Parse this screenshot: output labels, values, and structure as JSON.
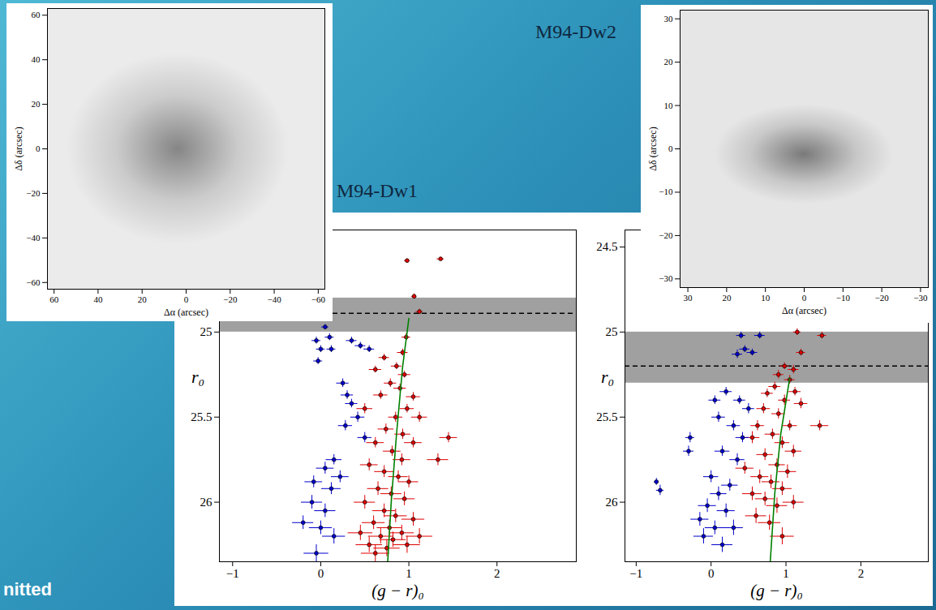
{
  "chart_data": [
    {
      "type": "scatter",
      "xlabel": "(g − r)₀",
      "ylabel": "r₀",
      "xlim": [
        -1.15,
        2.9
      ],
      "ylim": [
        26.35,
        24.4
      ],
      "xticks": [
        {
          "value": -1,
          "label": "−1"
        },
        0,
        1,
        2
      ],
      "yticks": [
        25,
        25.5,
        26
      ],
      "hline": {
        "value": 24.89,
        "band": [
          24.8,
          25.0
        ],
        "line_style": "dashed",
        "color": "#000000",
        "band_color": "#a0a0a0"
      },
      "series": [
        {
          "type": "scatter",
          "marker": "o",
          "color": "#e00000",
          "x": [
            0.98,
            1.36,
            1.06,
            1.12,
            0.97,
            0.93,
            0.72,
            0.86,
            0.95,
            0.62,
            0.79,
            0.9,
            1.05,
            0.68,
            0.98,
            1.12,
            0.85,
            0.5,
            0.74,
            0.93,
            1.05,
            0.62,
            0.81,
            1.45,
            0.92,
            1.33,
            0.55,
            0.72,
            0.88,
            1.0,
            0.65,
            0.8,
            0.95,
            0.5,
            0.72,
            0.85,
            1.05,
            0.6,
            0.78,
            0.92,
            0.45,
            0.68,
            0.82,
            1.12,
            0.55,
            0.75,
            0.98,
            0.62
          ],
          "y": [
            24.58,
            24.57,
            24.79,
            24.88,
            25.03,
            25.12,
            25.15,
            25.2,
            25.25,
            25.22,
            25.3,
            25.33,
            25.38,
            25.37,
            25.45,
            25.5,
            25.5,
            25.45,
            25.57,
            25.6,
            25.65,
            25.65,
            25.7,
            25.62,
            25.75,
            25.75,
            25.78,
            25.82,
            25.85,
            25.88,
            25.92,
            25.95,
            25.98,
            26.0,
            26.05,
            26.08,
            26.1,
            26.12,
            26.15,
            26.18,
            26.18,
            26.2,
            26.22,
            26.2,
            26.25,
            26.27,
            26.25,
            26.3
          ],
          "xerr": [
            0.03,
            0.04,
            0.03,
            0.04,
            0.05,
            0.06,
            0.06,
            0.06,
            0.07,
            0.07,
            0.07,
            0.07,
            0.08,
            0.08,
            0.08,
            0.09,
            0.08,
            0.09,
            0.09,
            0.09,
            0.1,
            0.1,
            0.1,
            0.1,
            0.1,
            0.12,
            0.1,
            0.11,
            0.11,
            0.11,
            0.12,
            0.12,
            0.12,
            0.12,
            0.13,
            0.13,
            0.13,
            0.13,
            0.14,
            0.14,
            0.14,
            0.14,
            0.15,
            0.15,
            0.15,
            0.15,
            0.15,
            0.16
          ],
          "yerr": [
            0.01,
            0.01,
            0.015,
            0.015,
            0.02,
            0.02,
            0.02,
            0.02,
            0.02,
            0.02,
            0.025,
            0.025,
            0.025,
            0.025,
            0.025,
            0.03,
            0.03,
            0.03,
            0.03,
            0.03,
            0.03,
            0.03,
            0.03,
            0.03,
            0.035,
            0.035,
            0.035,
            0.035,
            0.035,
            0.035,
            0.04,
            0.04,
            0.04,
            0.04,
            0.04,
            0.04,
            0.04,
            0.04,
            0.045,
            0.045,
            0.045,
            0.045,
            0.045,
            0.045,
            0.045,
            0.05,
            0.05,
            0.05
          ]
        },
        {
          "type": "scatter",
          "marker": "o",
          "color": "#0000d0",
          "x": [
            0.05,
            -0.05,
            0.1,
            0.0,
            0.12,
            -0.03,
            0.35,
            0.45,
            0.55,
            0.25,
            0.3,
            0.35,
            0.42,
            0.28,
            0.5,
            0.15,
            0.05,
            0.22,
            -0.08,
            0.12,
            -0.1,
            0.05,
            -0.2,
            0.0,
            0.15,
            -0.05
          ],
          "y": [
            24.97,
            25.05,
            25.03,
            25.1,
            25.1,
            25.17,
            25.05,
            25.08,
            25.1,
            25.3,
            25.37,
            25.42,
            25.5,
            25.55,
            25.62,
            25.75,
            25.8,
            25.85,
            25.88,
            25.92,
            26.0,
            26.05,
            26.12,
            26.15,
            26.2,
            26.3
          ],
          "xerr": [
            0.04,
            0.05,
            0.05,
            0.05,
            0.05,
            0.05,
            0.06,
            0.06,
            0.06,
            0.07,
            0.07,
            0.07,
            0.08,
            0.08,
            0.08,
            0.09,
            0.1,
            0.1,
            0.1,
            0.11,
            0.12,
            0.12,
            0.12,
            0.13,
            0.13,
            0.14
          ],
          "yerr": [
            0.015,
            0.02,
            0.02,
            0.02,
            0.02,
            0.02,
            0.02,
            0.02,
            0.02,
            0.025,
            0.025,
            0.025,
            0.03,
            0.03,
            0.03,
            0.03,
            0.035,
            0.035,
            0.035,
            0.035,
            0.04,
            0.04,
            0.04,
            0.04,
            0.045,
            0.05
          ]
        },
        {
          "type": "line",
          "line_style": "solid",
          "color": "#008000",
          "x": [
            0.76,
            0.8,
            0.86,
            0.93,
            1.0
          ],
          "y": [
            26.35,
            26.0,
            25.6,
            25.2,
            24.92
          ]
        }
      ]
    },
    {
      "type": "scatter",
      "xlabel": "(g − r)₀",
      "ylabel": "r₀",
      "xlim": [
        -1.15,
        2.9
      ],
      "ylim": [
        26.35,
        24.4
      ],
      "xticks": [
        {
          "value": -1,
          "label": "−1"
        },
        0,
        1,
        2
      ],
      "yticks": [
        24.5,
        25,
        25.5,
        26
      ],
      "hline": {
        "value": 25.2,
        "band": [
          25.0,
          25.3
        ],
        "line_style": "dashed",
        "color": "#000000",
        "band_color": "#a0a0a0"
      },
      "series": [
        {
          "type": "scatter",
          "marker": "o",
          "color": "#e00000",
          "x": [
            1.15,
            1.48,
            1.2,
            0.98,
            1.1,
            0.9,
            1.05,
            0.85,
            1.12,
            0.75,
            0.98,
            1.2,
            0.7,
            0.9,
            1.45,
            1.05,
            0.62,
            0.82,
            0.95,
            0.55,
            1.1,
            0.72,
            0.88,
            0.45,
            1.02,
            0.65,
            0.8,
            0.95,
            0.55,
            0.72,
            1.1,
            0.88,
            0.6,
            0.78,
            0.95
          ],
          "y": [
            25.0,
            25.02,
            25.12,
            25.2,
            25.22,
            25.25,
            25.28,
            25.32,
            25.35,
            25.36,
            25.4,
            25.42,
            25.45,
            25.48,
            25.55,
            25.55,
            25.55,
            25.6,
            25.65,
            25.62,
            25.7,
            25.72,
            25.78,
            25.8,
            25.82,
            25.85,
            25.88,
            25.92,
            25.95,
            25.98,
            26.0,
            26.02,
            26.08,
            26.12,
            26.2
          ],
          "xerr": [
            0.05,
            0.06,
            0.06,
            0.06,
            0.07,
            0.07,
            0.07,
            0.08,
            0.08,
            0.08,
            0.08,
            0.09,
            0.09,
            0.09,
            0.12,
            0.1,
            0.09,
            0.1,
            0.1,
            0.1,
            0.11,
            0.11,
            0.11,
            0.12,
            0.12,
            0.12,
            0.12,
            0.13,
            0.13,
            0.13,
            0.14,
            0.14,
            0.14,
            0.15,
            0.16
          ],
          "yerr": [
            0.02,
            0.02,
            0.02,
            0.02,
            0.025,
            0.025,
            0.025,
            0.025,
            0.025,
            0.025,
            0.03,
            0.03,
            0.03,
            0.03,
            0.03,
            0.03,
            0.03,
            0.03,
            0.035,
            0.035,
            0.035,
            0.035,
            0.035,
            0.035,
            0.04,
            0.04,
            0.04,
            0.04,
            0.04,
            0.04,
            0.04,
            0.045,
            0.045,
            0.045,
            0.05
          ]
        },
        {
          "type": "scatter",
          "marker": "o",
          "color": "#0000d0",
          "x": [
            0.4,
            0.65,
            0.45,
            0.55,
            0.35,
            0.2,
            0.05,
            0.38,
            0.5,
            0.1,
            0.3,
            -0.28,
            0.42,
            -0.3,
            0.15,
            0.35,
            -0.73,
            -0.68,
            0.0,
            0.25,
            0.1,
            -0.05,
            0.2,
            -0.15,
            0.05,
            0.3,
            -0.1,
            0.15
          ],
          "y": [
            25.02,
            25.02,
            25.1,
            25.12,
            25.13,
            25.35,
            25.4,
            25.4,
            25.45,
            25.5,
            25.55,
            25.62,
            25.62,
            25.7,
            25.7,
            25.75,
            25.88,
            25.93,
            25.85,
            25.9,
            25.95,
            26.02,
            26.05,
            26.1,
            26.15,
            26.15,
            26.2,
            26.25
          ],
          "xerr": [
            0.06,
            0.07,
            0.07,
            0.07,
            0.07,
            0.08,
            0.08,
            0.08,
            0.08,
            0.09,
            0.09,
            0.06,
            0.09,
            0.07,
            0.1,
            0.1,
            0.03,
            0.05,
            0.1,
            0.11,
            0.11,
            0.12,
            0.12,
            0.12,
            0.13,
            0.13,
            0.13,
            0.14
          ],
          "yerr": [
            0.02,
            0.02,
            0.02,
            0.02,
            0.025,
            0.025,
            0.025,
            0.025,
            0.03,
            0.03,
            0.03,
            0.03,
            0.03,
            0.03,
            0.03,
            0.035,
            0.02,
            0.03,
            0.035,
            0.035,
            0.04,
            0.04,
            0.04,
            0.04,
            0.04,
            0.045,
            0.045,
            0.045
          ]
        },
        {
          "type": "line",
          "line_style": "solid",
          "color": "#008000",
          "x": [
            0.79,
            0.85,
            0.93,
            1.05
          ],
          "y": [
            26.35,
            25.95,
            25.6,
            25.27
          ]
        }
      ]
    },
    {
      "type": "image",
      "title": "M94-Dw1",
      "xlabel": "Δα (arcsec)",
      "ylabel": "Δδ (arcsec)",
      "xlim": [
        63,
        -63
      ],
      "ylim": [
        -63,
        63
      ],
      "xticks": [
        60,
        40,
        20,
        0,
        {
          "value": -20,
          "label": "−20"
        },
        {
          "value": -40,
          "label": "−40"
        },
        {
          "value": -60,
          "label": "−60"
        }
      ],
      "yticks": [
        {
          "value": -60,
          "label": "−60"
        },
        {
          "value": -40,
          "label": "−40"
        },
        {
          "value": -20,
          "label": "−20"
        },
        0,
        20,
        40,
        60
      ]
    },
    {
      "type": "image",
      "title": "M94-Dw2",
      "xlabel": "Δα (arcsec)",
      "ylabel": "Δδ (arcsec)",
      "xlim": [
        32,
        -32
      ],
      "ylim": [
        -32,
        32
      ],
      "xticks": [
        30,
        20,
        10,
        0,
        {
          "value": -10,
          "label": "−10"
        },
        {
          "value": -20,
          "label": "−20"
        },
        {
          "value": -30,
          "label": "−30"
        }
      ],
      "yticks": [
        {
          "value": -30,
          "label": "−30"
        },
        {
          "value": -20,
          "label": "−20"
        },
        {
          "value": -10,
          "label": "−10"
        },
        0,
        10,
        20,
        30
      ]
    }
  ],
  "footer_text": "nitted"
}
